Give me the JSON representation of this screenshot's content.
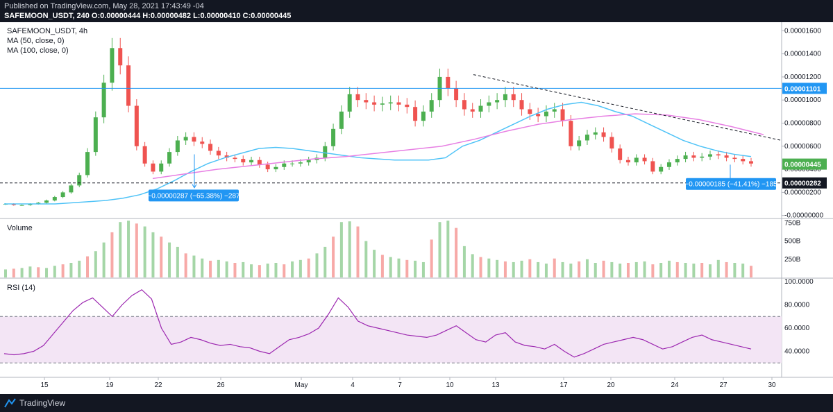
{
  "header": {
    "published": "Published on TradingView.com, May 28, 2021 17:43:49 -04",
    "symbol_line": "SAFEMOON_USDT, 240 O:0.00000444 H:0.00000482 L:0.00000410 C:0.00000445"
  },
  "footer": {
    "brand": "TradingView"
  },
  "chart_data": {
    "type": "candlestick",
    "title": "SAFEMOON_USDT, 4h",
    "indicators": [
      "MA (50, close, 0)",
      "MA (100, close, 0)"
    ],
    "x_ticks": [
      "15",
      "19",
      "22",
      "26",
      "May",
      "4",
      "7",
      "10",
      "13",
      "17",
      "20",
      "24",
      "27",
      "30"
    ],
    "y_ticks": [
      "0.00001600",
      "0.00001400",
      "0.00001200",
      "0.00001000",
      "0.00000800",
      "0.00000600",
      "0.00000400",
      "0.00000200",
      "-0.00000000"
    ],
    "y_range": [
      -2e-07,
      1.65e-05
    ],
    "ohlc_last": {
      "open": 4.44e-06,
      "high": 4.82e-06,
      "low": 4.1e-06,
      "close": 4.45e-06
    },
    "horizontal_lines": [
      {
        "value": 1.101e-05,
        "label": "0.00001101",
        "color": "#2196f3",
        "style": "solid"
      },
      {
        "value": 2.82e-06,
        "label": "0.00000282",
        "color": "#131722",
        "style": "dashed"
      }
    ],
    "last_price_label": {
      "value": 4.45e-06,
      "label": "0.00000445",
      "color": "#4caf50"
    },
    "measurements": [
      "−0.00000287 (−65.38%) −287",
      "−0.00000185 (−41.41%) −185"
    ],
    "trendline": "descending dashed line from May 11 high (~0.0000122) toward May 30 (~0.0000065)",
    "series_close": [
      1e-06,
      9e-07,
      9e-07,
      1e-06,
      1.1e-06,
      1.3e-06,
      1.6e-06,
      2e-06,
      2.6e-06,
      3.5e-06,
      5.5e-06,
      8.5e-06,
      1.15e-05,
      1.45e-05,
      1.3e-05,
      9.5e-06,
      6e-06,
      4.5e-06,
      3.8e-06,
      4.5e-06,
      5.5e-06,
      6.5e-06,
      6.8e-06,
      6.4e-06,
      6.2e-06,
      5.6e-06,
      5.2e-06,
      5e-06,
      4.9e-06,
      4.6e-06,
      4.8e-06,
      4.4e-06,
      4e-06,
      4.2e-06,
      4.5e-06,
      4.5e-06,
      4.6e-06,
      4.8e-06,
      5e-06,
      6e-06,
      7.5e-06,
      9e-06,
      1.05e-05,
      1e-05,
      9.8e-06,
      9.6e-06,
      9.7e-06,
      9.8e-06,
      9.6e-06,
      9.4e-06,
      8.2e-06,
      9e-06,
      1e-05,
      1.2e-05,
      1.1e-05,
      1e-05,
      9.2e-06,
      9e-06,
      9.5e-06,
      9.8e-06,
      1e-05,
      1.05e-05,
      1e-05,
      9.2e-06,
      8.8e-06,
      8.6e-06,
      9e-06,
      9.2e-06,
      8.2e-06,
      6e-06,
      6.5e-06,
      7e-06,
      7.2e-06,
      6.8e-06,
      5.8e-06,
      4.8e-06,
      4.6e-06,
      5e-06,
      4.7e-06,
      3.8e-06,
      4.2e-06,
      4.6e-06,
      4.9e-06,
      5.2e-06,
      5e-06,
      5.1e-06,
      5.3e-06,
      5.2e-06,
      5e-06,
      4.9e-06,
      4.7e-06,
      4.5e-06
    ],
    "ma50": [
      1e-06,
      1e-06,
      1e-06,
      1e-06,
      1.1e-06,
      1.2e-06,
      1.3e-06,
      1.5e-06,
      1.8e-06,
      2.3e-06,
      3e-06,
      3.8e-06,
      4.5e-06,
      5e-06,
      5.4e-06,
      5.8e-06,
      5.9e-06,
      5.8e-06,
      5.6e-06,
      5.4e-06,
      5.2e-06,
      5e-06,
      4.9e-06,
      4.8e-06,
      4.8e-06,
      4.8e-06,
      5e-06,
      6e-06,
      6.5e-06,
      7.2e-06,
      7.9e-06,
      8.6e-06,
      9.2e-06,
      9.6e-06,
      9.8e-06,
      9.5e-06,
      9e-06,
      8.6e-06,
      7.9e-06,
      7.2e-06,
      6.5e-06,
      6e-06,
      5.6e-06,
      5.3e-06,
      5.1e-06
    ],
    "ma100": [
      3.2e-06,
      3.6e-06,
      4e-06,
      4.3e-06,
      4.6e-06,
      4.9e-06,
      5.1e-06,
      5.4e-06,
      5.7e-06,
      6e-06,
      6.6e-06,
      7.3e-06,
      7.9e-06,
      8.3e-06,
      8.6e-06,
      8.8e-06,
      8.7e-06,
      8.3e-06,
      7.7e-06,
      7e-06
    ],
    "volume": {
      "y_ticks": [
        "750B",
        "500B",
        "250B"
      ],
      "values": [
        110,
        120,
        130,
        150,
        140,
        130,
        160,
        180,
        200,
        230,
        290,
        360,
        480,
        620,
        760,
        780,
        740,
        700,
        620,
        560,
        480,
        420,
        330,
        300,
        260,
        230,
        240,
        220,
        200,
        210,
        180,
        170,
        190,
        200,
        180,
        220,
        240,
        260,
        330,
        420,
        560,
        760,
        770,
        700,
        500,
        380,
        310,
        280,
        260,
        240,
        230,
        210,
        520,
        760,
        780,
        680,
        430,
        320,
        280,
        260,
        240,
        220,
        210,
        230,
        250,
        210,
        190,
        260,
        210,
        190,
        220,
        250,
        200,
        230,
        210,
        190,
        200,
        210,
        220,
        180,
        200,
        230,
        210,
        200,
        190,
        200,
        180,
        240,
        210,
        200,
        190,
        160
      ]
    },
    "rsi": {
      "label": "RSI (14)",
      "y_ticks": [
        "100.0000",
        "80.0000",
        "60.0000",
        "40.0000"
      ],
      "bands": [
        70,
        30
      ],
      "values": [
        38,
        37,
        38,
        40,
        45,
        55,
        65,
        75,
        82,
        86,
        78,
        70,
        80,
        88,
        93,
        85,
        60,
        46,
        48,
        52,
        50,
        47,
        45,
        46,
        44,
        43,
        40,
        38,
        44,
        50,
        52,
        55,
        60,
        72,
        86,
        78,
        66,
        62,
        60,
        58,
        56,
        54,
        53,
        52,
        54,
        58,
        62,
        56,
        50,
        48,
        54,
        56,
        48,
        45,
        44,
        42,
        46,
        40,
        35,
        38,
        42,
        46,
        48,
        50,
        52,
        50,
        46,
        42,
        44,
        48,
        52,
        54,
        50,
        48,
        46,
        44,
        42
      ]
    }
  }
}
